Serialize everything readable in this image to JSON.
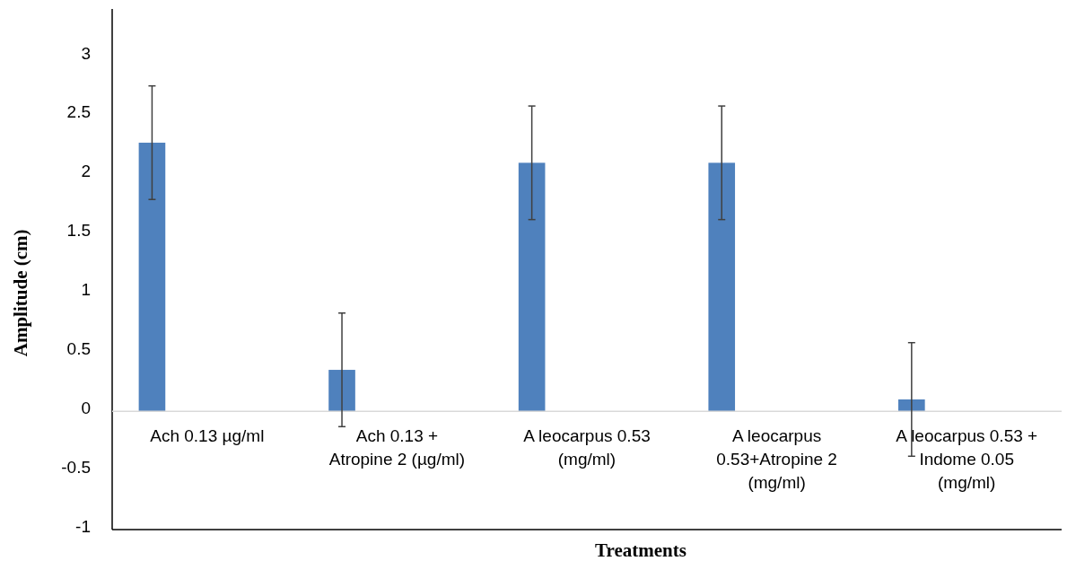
{
  "chart_data": {
    "type": "bar",
    "xlabel": "Treatments",
    "ylabel": "Amplitude (cm)",
    "categories": [
      "Ach 0.13 µg/ml",
      "Ach 0.13 +\nAtropine 2  (µg/ml)",
      "A leocarpus 0.53\n(mg/ml)",
      "A leocarpus\n0.53+Atropine 2\n(mg/ml)",
      "A leocarpus 0.53 +\nIndome 0.05\n(mg/ml)"
    ],
    "values": [
      2.27,
      0.35,
      2.1,
      2.1,
      0.1
    ],
    "errors": [
      0.48,
      0.48,
      0.48,
      0.48,
      0.48
    ],
    "color": "#4f81bd",
    "ylim": [
      -1,
      3.4
    ],
    "yticks": [
      -1,
      -0.5,
      0,
      0.5,
      1,
      1.5,
      2,
      2.5,
      3
    ],
    "grid": false
  }
}
